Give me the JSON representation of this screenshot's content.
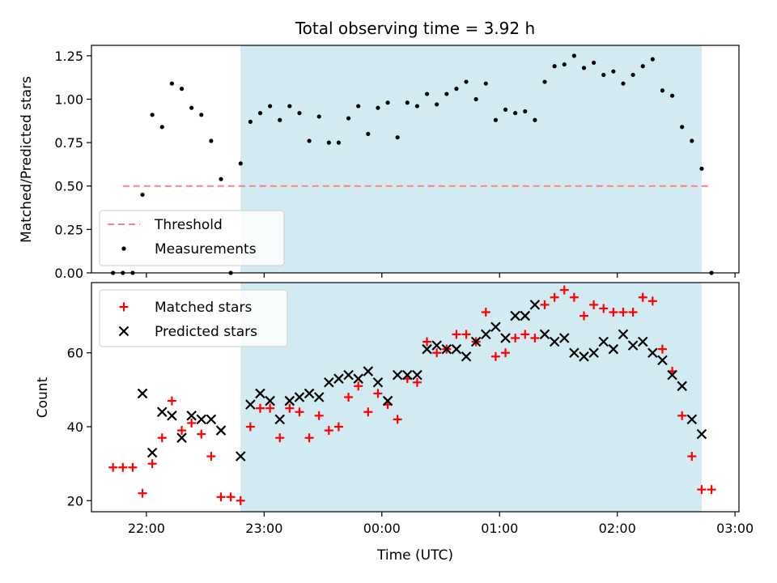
{
  "title": "Total observing time = 3.92 h",
  "colors": {
    "shade": "#add8e6",
    "threshold": "#ff8080",
    "measurements": "#000000",
    "matched": "#ff0000",
    "predicted": "#000000"
  },
  "chart_data": [
    {
      "type": "scatter",
      "panel": "top",
      "ylabel": "Matched/Predicted stars",
      "ylim": [
        0,
        1.31
      ],
      "yticks": [
        0.0,
        0.25,
        0.5,
        0.75,
        1.0,
        1.25
      ],
      "ytick_labels": [
        "0.00",
        "0.25",
        "0.50",
        "0.75",
        "1.00",
        "1.25"
      ],
      "shaded_span": [
        "22:48",
        "02:43"
      ],
      "threshold": {
        "name": "Threshold",
        "y": 0.5,
        "x_range": [
          "21:48",
          "02:48"
        ]
      },
      "legend": {
        "placement": "lower-left",
        "entries": [
          "Threshold",
          "Measurements"
        ]
      },
      "series": [
        {
          "name": "Measurements",
          "marker": "dot",
          "x": [
            "21:43",
            "21:48",
            "21:53",
            "21:58",
            "22:03",
            "22:08",
            "22:13",
            "22:18",
            "22:23",
            "22:28",
            "22:33",
            "22:38",
            "22:43",
            "22:48",
            "22:53",
            "22:58",
            "23:03",
            "23:08",
            "23:13",
            "23:18",
            "23:23",
            "23:28",
            "23:33",
            "23:38",
            "23:43",
            "23:48",
            "23:53",
            "23:58",
            "00:03",
            "00:08",
            "00:13",
            "00:18",
            "00:23",
            "00:28",
            "00:33",
            "00:38",
            "00:43",
            "00:48",
            "00:53",
            "00:58",
            "01:03",
            "01:08",
            "01:13",
            "01:18",
            "01:23",
            "01:28",
            "01:33",
            "01:38",
            "01:43",
            "01:48",
            "01:53",
            "01:58",
            "02:03",
            "02:08",
            "02:13",
            "02:18",
            "02:23",
            "02:28",
            "02:33",
            "02:38",
            "02:43",
            "02:48"
          ],
          "y": [
            0.0,
            0.0,
            0.0,
            0.45,
            0.91,
            0.84,
            1.09,
            1.06,
            0.95,
            0.91,
            0.76,
            0.54,
            0.0,
            0.63,
            0.87,
            0.92,
            0.96,
            0.88,
            0.96,
            0.92,
            0.76,
            0.9,
            0.75,
            0.75,
            0.89,
            0.96,
            0.8,
            0.95,
            0.98,
            0.78,
            0.98,
            0.96,
            1.03,
            0.97,
            1.03,
            1.06,
            1.1,
            1.0,
            1.09,
            0.88,
            0.94,
            0.92,
            0.93,
            0.88,
            1.1,
            1.19,
            1.2,
            1.25,
            1.18,
            1.21,
            1.14,
            1.16,
            1.09,
            1.14,
            1.19,
            1.23,
            1.05,
            1.02,
            0.84,
            0.76,
            0.6,
            0.0
          ]
        }
      ]
    },
    {
      "type": "scatter",
      "panel": "bottom",
      "xlabel": "Time (UTC)",
      "ylabel": "Count",
      "ylim": [
        17,
        79
      ],
      "yticks": [
        20,
        40,
        60
      ],
      "ytick_labels": [
        "20",
        "40",
        "60"
      ],
      "xlim": [
        "21:32",
        "03:02"
      ],
      "xticks": [
        "22:00",
        "23:00",
        "00:00",
        "01:00",
        "02:00",
        "03:00"
      ],
      "shaded_span": [
        "22:48",
        "02:43"
      ],
      "legend": {
        "placement": "upper-left",
        "entries": [
          "Matched stars",
          "Predicted stars"
        ]
      },
      "series": [
        {
          "name": "Matched stars",
          "marker": "plus",
          "x": [
            "21:43",
            "21:48",
            "21:53",
            "21:58",
            "22:03",
            "22:08",
            "22:13",
            "22:18",
            "22:23",
            "22:28",
            "22:33",
            "22:38",
            "22:43",
            "22:48",
            "22:53",
            "22:58",
            "23:03",
            "23:08",
            "23:13",
            "23:18",
            "23:23",
            "23:28",
            "23:33",
            "23:38",
            "23:43",
            "23:48",
            "23:53",
            "23:58",
            "00:03",
            "00:08",
            "00:13",
            "00:18",
            "00:23",
            "00:28",
            "00:33",
            "00:38",
            "00:43",
            "00:48",
            "00:53",
            "00:58",
            "01:03",
            "01:08",
            "01:13",
            "01:18",
            "01:23",
            "01:28",
            "01:33",
            "01:38",
            "01:43",
            "01:48",
            "01:53",
            "01:58",
            "02:03",
            "02:08",
            "02:13",
            "02:18",
            "02:23",
            "02:28",
            "02:33",
            "02:38",
            "02:43",
            "02:48"
          ],
          "y": [
            29,
            29,
            29,
            22,
            30,
            37,
            47,
            39,
            41,
            38,
            32,
            21,
            21,
            20,
            40,
            45,
            45,
            37,
            45,
            44,
            37,
            43,
            39,
            40,
            48,
            51,
            44,
            49,
            46,
            42,
            53,
            52,
            63,
            60,
            61,
            65,
            65,
            63,
            71,
            59,
            60,
            64,
            65,
            64,
            73,
            75,
            77,
            75,
            70,
            73,
            72,
            71,
            71,
            71,
            75,
            74,
            61,
            55,
            43,
            32,
            23,
            23
          ]
        },
        {
          "name": "Predicted stars",
          "marker": "x",
          "x": [
            "21:58",
            "22:03",
            "22:08",
            "22:13",
            "22:18",
            "22:23",
            "22:28",
            "22:33",
            "22:38",
            "22:48",
            "22:53",
            "22:58",
            "23:03",
            "23:08",
            "23:13",
            "23:18",
            "23:23",
            "23:28",
            "23:33",
            "23:38",
            "23:43",
            "23:48",
            "23:53",
            "23:58",
            "00:03",
            "00:08",
            "00:13",
            "00:18",
            "00:23",
            "00:28",
            "00:33",
            "00:38",
            "00:43",
            "00:48",
            "00:53",
            "00:58",
            "01:03",
            "01:08",
            "01:13",
            "01:18",
            "01:23",
            "01:28",
            "01:33",
            "01:38",
            "01:43",
            "01:48",
            "01:53",
            "01:58",
            "02:03",
            "02:08",
            "02:13",
            "02:18",
            "02:23",
            "02:28",
            "02:33",
            "02:38",
            "02:43"
          ],
          "y": [
            49,
            33,
            44,
            43,
            37,
            43,
            42,
            42,
            39,
            32,
            46,
            49,
            47,
            42,
            47,
            48,
            49,
            48,
            52,
            53,
            54,
            53,
            55,
            52,
            47,
            54,
            54,
            54,
            61,
            62,
            61,
            61,
            59,
            63,
            65,
            67,
            64,
            70,
            70,
            73,
            65,
            63,
            64,
            60,
            59,
            60,
            63,
            61,
            65,
            62,
            63,
            60,
            58,
            54,
            51,
            42,
            38
          ]
        }
      ]
    }
  ]
}
